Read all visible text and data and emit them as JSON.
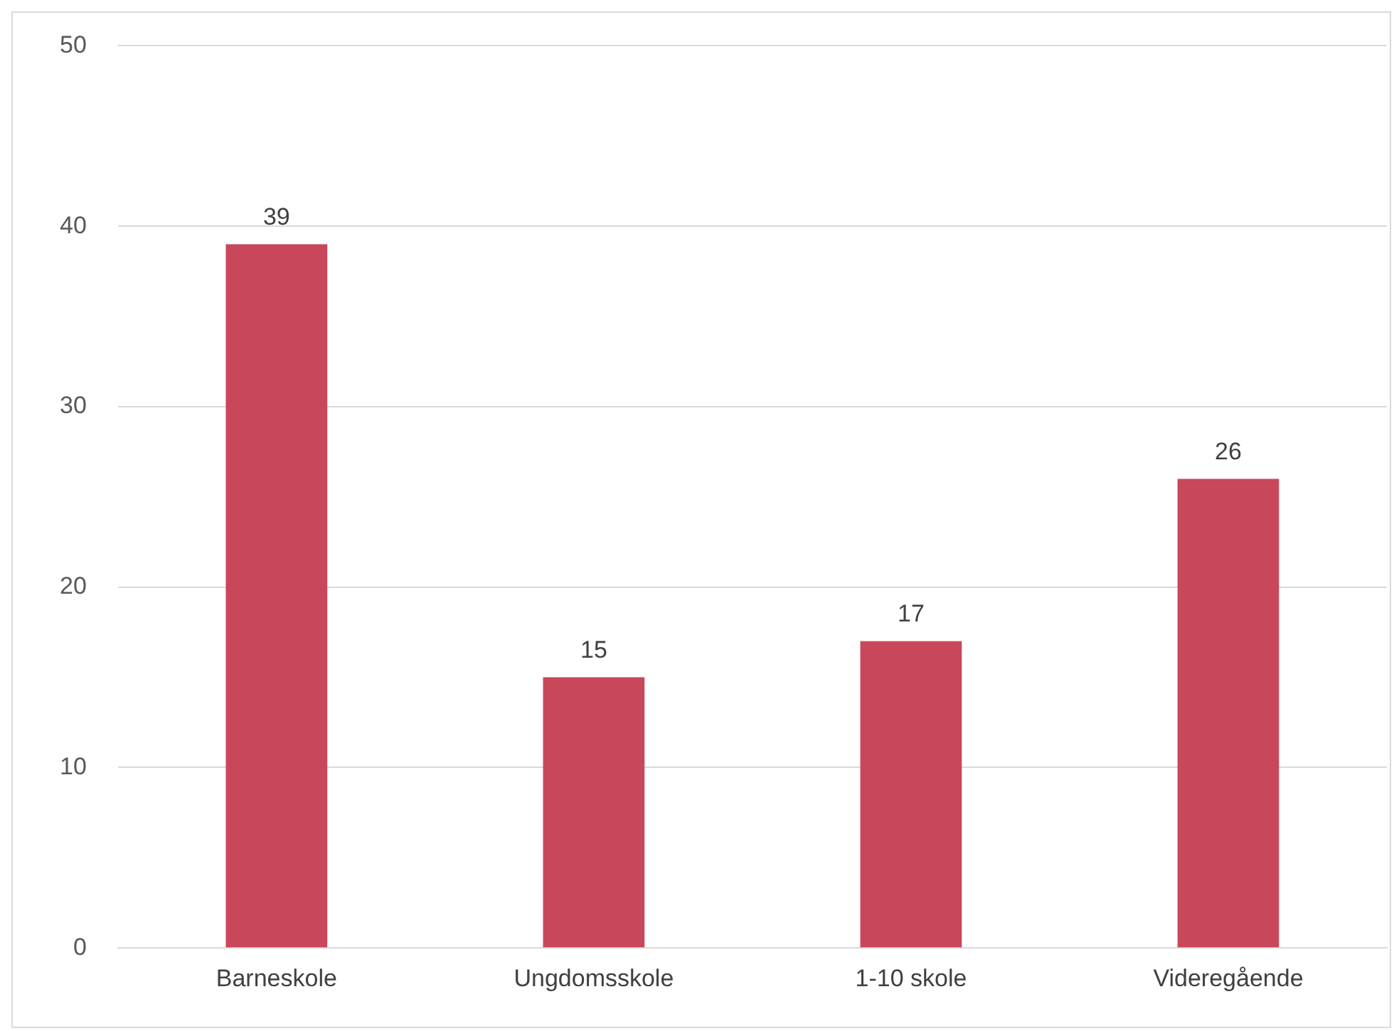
{
  "chart_data": {
    "type": "bar",
    "categories": [
      "Barneskole",
      "Ungdomsskole",
      "1-10 skole",
      "Videregående"
    ],
    "values": [
      39,
      15,
      17,
      26
    ],
    "color": "#c8475a",
    "ylim": [
      0,
      50
    ],
    "yticks": [
      0,
      10,
      20,
      30,
      40,
      50
    ],
    "grid": "y",
    "legend": false,
    "data_labels": true
  }
}
